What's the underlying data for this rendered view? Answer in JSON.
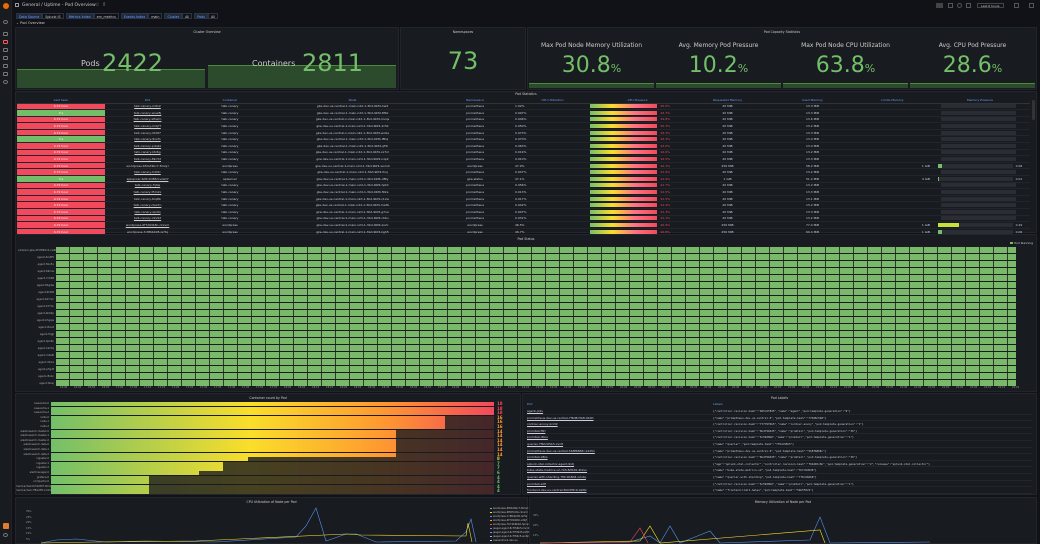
{
  "header": {
    "breadcrumb": "General / Uptime - Pod Overview",
    "time_range": "Last 6 hours"
  },
  "variables": [
    {
      "label": "Data Source",
      "value": "Splunk IS"
    },
    {
      "label": "Metrics Index",
      "value": "em_metrics"
    },
    {
      "label": "Events Index",
      "value": "main"
    },
    {
      "label": "Cluster",
      "value": "All"
    },
    {
      "label": "Pods",
      "value": "All"
    }
  ],
  "row_title": "Pod Overview",
  "cluster_overview": {
    "title": "Cluster Overview",
    "pods_label": "Pods",
    "pods": "2422",
    "containers_label": "Containers",
    "containers": "2811"
  },
  "namespaces": {
    "title": "Namespaces",
    "value": "73"
  },
  "capacity": {
    "title": "Pod Capacity Statistics",
    "stats": [
      {
        "label": "Max Pod Node Memory Utilization",
        "value": "30.8",
        "unit": "%"
      },
      {
        "label": "Avg. Memory Pod Pressure",
        "value": "10.2",
        "unit": "%"
      },
      {
        "label": "Max Pod Node CPU Utilization",
        "value": "63.8",
        "unit": "%"
      },
      {
        "label": "Avg. CPU Pod Pressure",
        "value": "28.6",
        "unit": "%"
      }
    ]
  },
  "pod_stats": {
    "title": "Pod Statistics",
    "columns": [
      "Last Seen",
      "Pod",
      "Container",
      "Node",
      "Namespace",
      "CPU Utilization",
      "CPU Pressure",
      "Requested Memory",
      "Used Memory",
      "Limits Memory",
      "Memory Pressure"
    ],
    "rows": [
      [
        "4.72 hour",
        "talk-canary-rn6x2",
        "talk-canary",
        "gke-dev-us-central-1-main-n2d-1-3bd-9bf4-hw4",
        "prometheus",
        "1.02%",
        "95.0%",
        "20 MiB",
        "13.3 MiB",
        "",
        "",
        0,
        "red"
      ],
      [
        "3 s",
        "talk-canary-wnw8j",
        "talk-canary",
        "gke-dev-us-central-1-main-n2d-1-3bd-9bf4-8f9z",
        "prometheus",
        "0.997%",
        "93.7%",
        "20 MiB",
        "13.3 MiB",
        "",
        "",
        0,
        "green"
      ],
      [
        "4.72 hour",
        "talk-canary-sfhwm",
        "talk-canary",
        "gke-dev-us-central-1-main-n2d-1-3bd-9bf4-mvqs",
        "prometheus",
        "0.946%",
        "94.8%",
        "20 MiB",
        "13.6 MiB",
        "",
        "",
        0,
        "red"
      ],
      [
        "4.72 hour",
        "talk-canary-m4j7f",
        "talk-canary",
        "gke-dev-us-central-1-main-n2d-1-3bd-9bf4-2c5k",
        "prometheus",
        "0.950%",
        "95.3%",
        "20 MiB",
        "13.2 MiB",
        "",
        "",
        0,
        "red"
      ],
      [
        "4.72 hour",
        "talk-canary-2b9t7",
        "talk-canary",
        "gke-dev-us-central-1-main-n2d-1-3bd-9bf4-wo0e",
        "prometheus",
        "0.973%",
        "93.3%",
        "20 MiB",
        "13.3 MiB",
        "",
        "",
        0,
        "red"
      ],
      [
        "3 s",
        "talk-canary-9vxfn",
        "talk-canary",
        "gke-dev-us-central-1-main-n2d-1-3bd-9bf4-l8hq",
        "prometheus",
        "0.970%",
        "93.3%",
        "20 MiB",
        "13.4 MiB",
        "",
        "",
        0,
        "green"
      ],
      [
        "4.72 hour",
        "talk-canary-pdq4z",
        "talk-canary",
        "gke-dev-us-central-1-main-n2d-1-3bd-9bf4-q5tr",
        "prometheus",
        "0.963%",
        "93.0%",
        "20 MiB",
        "13.4 MiB",
        "",
        "",
        0,
        "red"
      ],
      [
        "4.72 hour",
        "talk-canary-ktz6g",
        "talk-canary",
        "gke-dev-us-central-1-main-n2d-1-3bd-9bf4-xx7m",
        "prometheus",
        "0.919%",
        "92.6%",
        "20 MiB",
        "13.2 MiB",
        "",
        "",
        0,
        "red"
      ],
      [
        "4.72 hour",
        "talk-canary-8kc5d",
        "talk-canary",
        "gke-dev-us-central-1-main-n2d-1-3bd-9bf4-nzp2",
        "prometheus",
        "0.910%",
        "92.5%",
        "20 MiB",
        "13.3 MiB",
        "",
        "",
        0,
        "red"
      ],
      [
        "4.72 hour",
        "wordpress-6fcbd9bc7-8mqrl",
        "wordpress",
        "gke-dev-us-central-1-main-n2d-1-3bd-9bf4-wnm4",
        "wordpress",
        "47.9%",
        "92.1%",
        "256 MiB",
        "58.2 MiB",
        "1 GiB",
        "0.06",
        0.06,
        "red"
      ],
      [
        "4.72 hour",
        "talk-canary-h42tc",
        "talk-canary",
        "gke-dev-us-central-1-main-n2d-1-3bd-9bf4-lhuj",
        "prometheus",
        "0.947%",
        "91.9%",
        "20 MiB",
        "13.2 MiB",
        "",
        "",
        0,
        "red"
      ],
      [
        "3 s",
        "apiserver-6d5c6d86d-vzsmf",
        "apiserver",
        "gke-dev-us-central-1-main-n2d-1-3bd-9bf4-d8ty",
        "gke-status",
        "47.1%",
        "91.9%",
        "1 GiB",
        "51.2 MiB",
        "4 GiB",
        "0.01",
        0.01,
        "green"
      ],
      [
        "4.72 hour",
        "talk-canary-frj9w",
        "talk-canary",
        "gke-dev-us-central-1-main-n2d-1-3bd-9bf4-hpt0",
        "prometheus",
        "0.956%",
        "91.7%",
        "20 MiB",
        "13.2 MiB",
        "",
        "",
        0,
        "red"
      ],
      [
        "4.72 hour",
        "talk-canary-t5m2x",
        "talk-canary",
        "gke-dev-us-central-1-main-n2d-1-3bd-9bf4-f92e",
        "prometheus",
        "0.913%",
        "91.5%",
        "20 MiB",
        "13.3 MiB",
        "",
        "",
        0,
        "red"
      ],
      [
        "4.72 hour",
        "talk-canary-6rq8b",
        "talk-canary",
        "gke-dev-us-central-1-main-n2d-1-3bd-9bf4-v1xw",
        "prometheus",
        "0.917%",
        "91.5%",
        "20 MiB",
        "13.1 MiB",
        "",
        "",
        0,
        "red"
      ],
      [
        "4.72 hour",
        "talk-canary-cbw7n",
        "talk-canary",
        "gke-dev-us-central-1-main-n2d-1-3bd-9bf4-ma3k",
        "prometheus",
        "0.942%",
        "91.4%",
        "20 MiB",
        "13.2 MiB",
        "",
        "",
        0,
        "red"
      ],
      [
        "4.72 hour",
        "talk-canary-zp4lq",
        "talk-canary",
        "gke-dev-us-central-1-main-n2d-1-3bd-9bf4-g7ne",
        "prometheus",
        "0.907%",
        "91.3%",
        "20 MiB",
        "13.3 MiB",
        "",
        "",
        0,
        "red"
      ],
      [
        "4.72 hour",
        "talk-canary-x2v9d",
        "talk-canary",
        "gke-dev-us-central-1-main-n2d-1-3bd-9bf4-r4bu",
        "prometheus",
        "0.931%",
        "91.1%",
        "20 MiB",
        "13.2 MiB",
        "",
        "",
        0,
        "red"
      ],
      [
        "4.72 hour",
        "wordpress-6f7d94b8c-ckxvm",
        "wordpress",
        "gke-dev-us-central-1-main-n2d-1-3bd-9bf4-zo2c",
        "wordpress",
        "46.5%",
        "90.9%",
        "256 MiB",
        "77.4 MiB",
        "1 GiB",
        "0.29",
        0.29,
        "red"
      ],
      [
        "4.72 hour",
        "wordpress-7c8fbbb95-ls7tq",
        "wordpress",
        "gke-dev-us-central-1-main-n2d-1-3bd-9bf4-kgh5",
        "wordpress",
        "46.7%",
        "90.8%",
        "256 MiB",
        "60.4 MiB",
        "1 GiB",
        "0.06",
        0.06,
        "red"
      ]
    ]
  },
  "pod_status": {
    "title": "Pod Status",
    "legend": "Pod Running",
    "color": "#7ab86a",
    "rows": [
      "cadvisor-gke-4fd7865c4-vw4b",
      "agent-4m9f5",
      "agent-5bv5x",
      "agent-69rnw",
      "agent-7cb68",
      "agent-8bg4w",
      "agent-9h6l8",
      "agent-b27nm",
      "agent-b77hn",
      "agent-bb92p",
      "agent-bhgqw",
      "agent-dhsxt",
      "agent-fhgjl",
      "agent-hpk6n",
      "agent-k2zhq",
      "agent-m4s8l",
      "agent-n5zrs",
      "agent-p5g4t",
      "agent-r8xkn",
      "agent-tbvsj"
    ],
    "times": [
      "16:40",
      "16:45",
      "16:50",
      "16:55",
      "17:00",
      "17:05",
      "17:10",
      "17:15",
      "17:20",
      "17:25",
      "17:30",
      "17:35",
      "17:40",
      "17:45",
      "17:50",
      "17:55",
      "18:00",
      "18:05",
      "18:10",
      "18:15",
      "18:20",
      "18:25",
      "18:30",
      "18:35",
      "18:40",
      "18:45",
      "18:50",
      "18:55",
      "19:00",
      "19:05",
      "19:10",
      "19:15",
      "19:20",
      "19:25",
      "19:30",
      "19:35",
      "19:40",
      "19:45",
      "19:50",
      "19:55",
      "20:00",
      "20:05",
      "20:10",
      "20:15",
      "20:20",
      "20:25",
      "20:30",
      "20:35",
      "20:40",
      "20:45",
      "20:50",
      "20:55",
      "21:00",
      "21:05",
      "21:10",
      "21:15",
      "21:20",
      "21:25",
      "21:30",
      "21:35",
      "21:40",
      "21:45",
      "21:50",
      "21:55",
      "22:00",
      "22:05",
      "22:10",
      "22:15",
      "22:20"
    ]
  },
  "container_count": {
    "title": "Container count by Pod",
    "max": 18,
    "items": [
      {
        "label": "cassandra-0",
        "value": 18
      },
      {
        "label": "cassandra-1",
        "value": 18
      },
      {
        "label": "cassandra-2",
        "value": 18
      },
      {
        "label": "redis-0",
        "value": 16
      },
      {
        "label": "redis-1",
        "value": 16
      },
      {
        "label": "redis-2",
        "value": 16
      },
      {
        "label": "elasticsearch-master-0",
        "value": 14
      },
      {
        "label": "elasticsearch-master-1",
        "value": 14
      },
      {
        "label": "elasticsearch-master-2",
        "value": 14
      },
      {
        "label": "elasticsearch-data-0",
        "value": 14
      },
      {
        "label": "elasticsearch-data-1",
        "value": 14
      },
      {
        "label": "elasticsearch-data-2",
        "value": 14
      },
      {
        "label": "ingester-0",
        "value": 8
      },
      {
        "label": "ingester-1",
        "value": 7
      },
      {
        "label": "ingester-2",
        "value": 7
      },
      {
        "label": "alertmanager-0",
        "value": 6
      },
      {
        "label": "grafana-0",
        "value": 4
      },
      {
        "label": "compactor-0",
        "value": 4
      },
      {
        "label": "memcached-6c5bd8f7-8mqf",
        "value": 4
      },
      {
        "label": "memcached-7f84c8f7-kn9dq",
        "value": 4
      }
    ]
  },
  "pod_labels": {
    "title": "Pod Labels",
    "columns": [
      "Pod",
      "Labels"
    ],
    "rows": [
      [
        "agent-jx2x",
        "{\"controller-revision-hash\":\"665c6f8d5\",\"name\":\"agent\",\"pod-template-generation\":\"9\"}"
      ],
      [
        "prometheus-dev-us-central-7f6d8c5b8-9b9h",
        "{\"name\":\"prometheus-dev-us-central-0\",\"pod-template-hash\":\"7f6d8c5b8\"}"
      ],
      [
        "contour-envoy-kc2l2",
        "{\"controller-revision-hash\":\"77779f6b5\",\"name\":\"contour-envoy\",\"pod-template-generation\":\"1\"}"
      ],
      [
        "promtail-ff2l",
        "{\"controller-revision-hash\":\"6b479b6d5\",\"name\":\"promtail\",\"pod-template-generation\":\"36\"}"
      ],
      [
        "promtail-dbns",
        "{\"controller-revision-hash\":\"6c59d8b6\",\"name\":\"promtail\",\"pod-template-generation\":\"1\"}"
      ],
      [
        "querier-7f6dc65b5-2vc8",
        "{\"name\":\"querier\",\"pod-template-hash\":\"7f6dc65b5\"}"
      ],
      [
        "prometheus-dev-us-central-5b8f6868c-k2z5x",
        "{\"name\":\"prometheus-dev-us-central-0\",\"pod-template-hash\":\"5b8f6868c\"}"
      ],
      [
        "promtail-x8ks",
        "{\"controller-revision-hash\":\"6b479b6d5\",\"name\":\"promtail\",\"pod-template-generation\":\"36\"}"
      ],
      [
        "splunk-otel-collector-agent-9xtj",
        "{\"app\":\"splunk-otel-collector\",\"controller-revision-hash\":\"f6b4b5c6b\",\"pod-template-generation\":\"2\",\"release\":\"splunk-otel-collector\"}"
      ],
      [
        "kube-state-metrics-v2-7bfc8d5d6-4kzvn",
        "{\"name\":\"kube-state-metrics-v2\",\"pod-template-hash\":\"7bfc8d5d6\"}"
      ],
      [
        "querier-with-sharding-7f6c9b6b8-x2vtq",
        "{\"name\":\"querier-with-sharding\",\"pod-template-hash\":\"7f6c9b6b8\"}"
      ],
      [
        "promtail-s2fl",
        "{\"controller-revision-hash\":\"6c59d8b6\",\"name\":\"promtail\",\"pod-template-generation\":\"1\"}"
      ],
      [
        "frontend-dev-us-central-5bb5f8c9-4sl8z",
        "{\"name\":\"frontend-limit-helps\",\"pod-template-hash\":\"5bb5f8c9\"}"
      ]
    ]
  },
  "cpu_chart": {
    "title": "CPU Utilization of Node per Pod",
    "y_ticks": [
      "30%",
      "25%",
      "20%",
      "15%",
      "10%",
      "5%"
    ],
    "legend": [
      "wordpress-6f6bd9bc7-8mqrl",
      "wordpress-6f8d5c6b-ckxvm",
      "wordpress-7c8fbbb95-ls7tq",
      "wordpress-6f7d94b8c-zdkjf",
      "wordpress-7b74b6b6d-hpnsd",
      "jaeger-agent-8c7fb6b5-mvc2",
      "jaeger-agent-6c7f5f4d5-kz8hg",
      "jaeger-agent-4c7fb6c5-wo6m",
      "cassandra-0-dev-us"
    ]
  },
  "mem_chart": {
    "title": "Memory Utilization of Node per Pod",
    "y_ticks": [
      "30%",
      "20%",
      "10%"
    ]
  }
}
